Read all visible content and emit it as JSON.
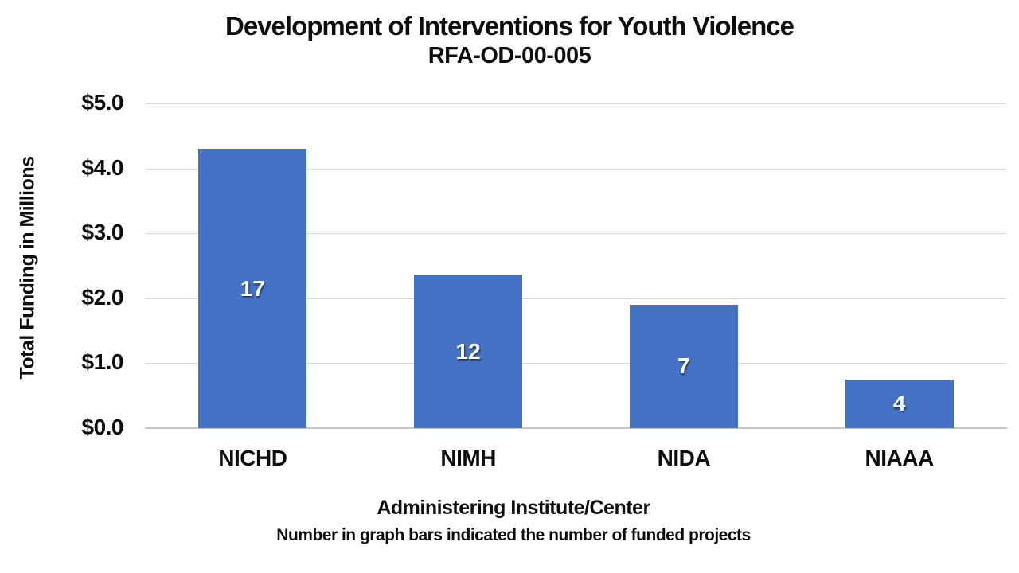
{
  "chart_data": {
    "type": "bar",
    "title": "Development of Interventions for Youth Violence",
    "subtitle": "RFA-OD-00-005",
    "categories": [
      "NICHD",
      "NIMH",
      "NIDA",
      "NIAAA"
    ],
    "values": [
      4.3,
      2.35,
      1.9,
      0.75
    ],
    "bar_labels": [
      "17",
      "12",
      "7",
      "4"
    ],
    "xlabel": "Administering Institute/Center",
    "ylabel": "Total Funding in Millions",
    "footnote": "Number in graph bars indicated the number of funded projects",
    "y_ticks": [
      "$5.0",
      "$4.0",
      "$3.0",
      "$2.0",
      "$1.0",
      "$0.0"
    ],
    "ylim": [
      0,
      5
    ],
    "grid": true,
    "legend": false,
    "bar_color": "#4472c4",
    "bar_label_color": "#ffffff",
    "gridline_color": "#d9d9d9",
    "text_color": "#0d0d0d"
  }
}
